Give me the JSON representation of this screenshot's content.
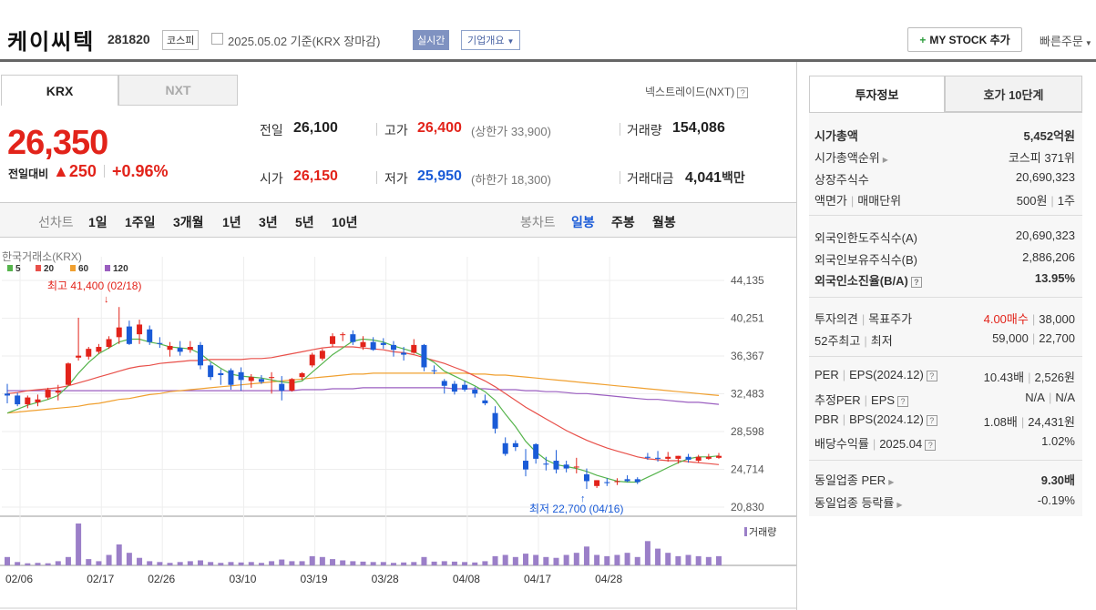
{
  "header": {
    "title": "케이씨텍",
    "code": "281820",
    "market": "코스피",
    "date_text": "2025.05.02  기준(KRX 장마감)",
    "realtime": "실시간",
    "company": "기업개요",
    "my_stock": "MY STOCK 추가",
    "quick_order": "빠른주문"
  },
  "tabs": {
    "krx": "KRX",
    "nxt": "NXT"
  },
  "nxt_link": "넥스트레이드(NXT)",
  "quote": {
    "price": "26,350",
    "change_label": "전일대비",
    "change": "▲250",
    "change_pct": "+0.96%",
    "prev_label": "전일",
    "prev": "26,100",
    "open_label": "시가",
    "open": "26,150",
    "high_label": "고가",
    "high": "26,400",
    "upper_limit": "(상한가 33,900)",
    "low_label": "저가",
    "low": "25,950",
    "lower_limit": "(하한가 18,300)",
    "volume_label": "거래량",
    "volume": "154,086",
    "amount_label": "거래대금",
    "amount": "4,041",
    "amount_unit": "백만"
  },
  "chart_controls": {
    "line_label": "선차트",
    "line_periods": [
      "1일",
      "1주일",
      "3개월",
      "1년",
      "3년",
      "5년",
      "10년"
    ],
    "candle_label": "봉차트",
    "candle_periods": [
      "일봉",
      "주봉",
      "월봉"
    ],
    "active": "일봉"
  },
  "chart_data": {
    "type": "candlestick",
    "source": "한국거래소(KRX)",
    "legend": [
      {
        "name": "5",
        "color": "#56b44c"
      },
      {
        "name": "20",
        "color": "#e8504a"
      },
      {
        "name": "60",
        "color": "#f0a030"
      },
      {
        "name": "120",
        "color": "#9b5fc0"
      }
    ],
    "y_ticks": [
      "44,135",
      "40,251",
      "36,367",
      "32,483",
      "28,598",
      "24,714",
      "20,830"
    ],
    "ylim": [
      20830,
      44135
    ],
    "x_ticks": [
      "02/06",
      "02/17",
      "02/26",
      "03/10",
      "03/19",
      "03/28",
      "04/08",
      "04/17",
      "04/28"
    ],
    "max_label": "최고 41,400 (02/18)",
    "min_label": "최저 22,700 (04/16)",
    "volume_label": "거래량",
    "candles": [
      [
        32500,
        33500,
        31500,
        32300
      ],
      [
        32300,
        32600,
        31200,
        31400
      ],
      [
        31400,
        32300,
        31000,
        32100
      ],
      [
        31600,
        32400,
        31200,
        31900
      ],
      [
        32100,
        33100,
        31900,
        32900
      ],
      [
        32600,
        33400,
        31800,
        32800
      ],
      [
        33400,
        35700,
        33300,
        35600
      ],
      [
        36200,
        40300,
        35900,
        36400
      ],
      [
        36300,
        37300,
        36000,
        37100
      ],
      [
        36800,
        37600,
        36600,
        37300
      ],
      [
        37300,
        38400,
        37100,
        38100
      ],
      [
        38300,
        41400,
        37600,
        39300
      ],
      [
        39400,
        40000,
        37500,
        37600
      ],
      [
        38600,
        40100,
        37600,
        39600
      ],
      [
        39100,
        39500,
        37500,
        37800
      ],
      [
        37700,
        38300,
        37200,
        37600
      ],
      [
        37000,
        37800,
        36300,
        37400
      ],
      [
        37200,
        37900,
        36400,
        36800
      ],
      [
        37000,
        37900,
        36700,
        37300
      ],
      [
        37500,
        37800,
        35000,
        35400
      ],
      [
        35400,
        35700,
        33900,
        34200
      ],
      [
        34600,
        35000,
        33400,
        34400
      ],
      [
        34900,
        35100,
        32900,
        33400
      ],
      [
        34700,
        35200,
        32800,
        33900
      ],
      [
        33800,
        34500,
        33100,
        34200
      ],
      [
        34000,
        34400,
        33500,
        33700
      ],
      [
        34100,
        34700,
        32500,
        34200
      ],
      [
        33500,
        34300,
        31800,
        32800
      ],
      [
        32800,
        34100,
        32700,
        34000
      ],
      [
        34200,
        34700,
        33900,
        34600
      ],
      [
        35400,
        36700,
        35200,
        36500
      ],
      [
        36100,
        37100,
        35900,
        36900
      ],
      [
        37600,
        38700,
        37300,
        38400
      ],
      [
        38600,
        38800,
        37900,
        38600
      ],
      [
        38600,
        39000,
        37500,
        37800
      ],
      [
        37300,
        38400,
        37000,
        37800
      ],
      [
        37800,
        38300,
        36900,
        37000
      ],
      [
        37700,
        38200,
        37100,
        37500
      ],
      [
        37500,
        37900,
        36300,
        37000
      ],
      [
        36700,
        37300,
        35900,
        36500
      ],
      [
        36700,
        38100,
        36600,
        37500
      ],
      [
        37500,
        37600,
        34800,
        35200
      ],
      [
        34900,
        35400,
        34500,
        34800
      ],
      [
        33800,
        34000,
        32500,
        33300
      ],
      [
        33500,
        33800,
        32400,
        32700
      ],
      [
        33400,
        33800,
        32700,
        32900
      ],
      [
        32900,
        33200,
        32100,
        32500
      ],
      [
        31800,
        32400,
        31300,
        31500
      ],
      [
        30500,
        31200,
        28400,
        28900
      ],
      [
        27400,
        28000,
        26100,
        26300
      ],
      [
        27400,
        27700,
        26600,
        27000
      ],
      [
        25600,
        26800,
        24000,
        24700
      ],
      [
        27300,
        27400,
        25300,
        25800
      ],
      [
        25300,
        26000,
        24600,
        25200
      ],
      [
        25600,
        26700,
        24300,
        24700
      ],
      [
        25200,
        25600,
        24400,
        24800
      ],
      [
        25000,
        25900,
        24300,
        25000
      ],
      [
        24200,
        24800,
        22700,
        23500
      ],
      [
        23000,
        23600,
        22800,
        23600
      ],
      [
        23400,
        23800,
        23000,
        23300
      ],
      [
        23400,
        23800,
        23100,
        23500
      ],
      [
        23700,
        24100,
        23400,
        23500
      ],
      [
        23700,
        23900,
        23200,
        23400
      ],
      [
        26000,
        26400,
        25700,
        25900
      ],
      [
        25900,
        26600,
        25500,
        25800
      ],
      [
        25800,
        26500,
        25500,
        26000
      ],
      [
        25800,
        26100,
        25300,
        26100
      ],
      [
        26000,
        26300,
        25400,
        25700
      ],
      [
        25600,
        26200,
        25400,
        26000
      ],
      [
        25800,
        26300,
        25700,
        26000
      ],
      [
        25900,
        26400,
        25800,
        26100
      ]
    ],
    "volumes": [
      0.2,
      0.08,
      0.05,
      0.06,
      0.05,
      0.1,
      0.2,
      1.0,
      0.15,
      0.1,
      0.25,
      0.5,
      0.3,
      0.18,
      0.1,
      0.08,
      0.06,
      0.08,
      0.1,
      0.12,
      0.08,
      0.06,
      0.08,
      0.07,
      0.08,
      0.06,
      0.1,
      0.14,
      0.1,
      0.1,
      0.22,
      0.2,
      0.15,
      0.12,
      0.1,
      0.09,
      0.08,
      0.08,
      0.06,
      0.07,
      0.08,
      0.2,
      0.09,
      0.1,
      0.09,
      0.08,
      0.07,
      0.1,
      0.22,
      0.25,
      0.2,
      0.28,
      0.25,
      0.2,
      0.18,
      0.25,
      0.3,
      0.45,
      0.25,
      0.22,
      0.25,
      0.3,
      0.2,
      0.58,
      0.4,
      0.3,
      0.22,
      0.25,
      0.22,
      0.2,
      0.22
    ],
    "ma5": [
      30500,
      30900,
      31300,
      31600,
      31900,
      32300,
      33300,
      34600,
      35700,
      36600,
      37200,
      37800,
      38100,
      38100,
      37800,
      37600,
      37300,
      37200,
      37100,
      36600,
      35800,
      35100,
      34500,
      34300,
      34200,
      34100,
      33900,
      33700,
      33600,
      33800,
      34700,
      35600,
      36500,
      37200,
      37900,
      38100,
      38000,
      37800,
      37400,
      37100,
      36800,
      36300,
      35700,
      34800,
      34300,
      33800,
      33300,
      32700,
      31800,
      30400,
      29100,
      27600,
      26500,
      25700,
      25200,
      25000,
      24800,
      24500,
      24100,
      23800,
      23500,
      23400,
      23400,
      23900,
      24400,
      24900,
      25400,
      25800,
      26000,
      26000,
      26100
    ],
    "ma20": [
      32500,
      32600,
      32800,
      32900,
      33000,
      33100,
      33300,
      33600,
      33900,
      34200,
      34500,
      34800,
      35100,
      35300,
      35400,
      35600,
      35700,
      35800,
      35900,
      35900,
      36000,
      36000,
      36000,
      36000,
      36100,
      36100,
      36200,
      36400,
      36600,
      36800,
      37000,
      37200,
      37300,
      37300,
      37300,
      37200,
      37100,
      37000,
      36800,
      36700,
      36500,
      36200,
      35900,
      35600,
      35200,
      34800,
      34300,
      33800,
      33200,
      32500,
      31800,
      31100,
      30500,
      29900,
      29300,
      28700,
      28200,
      27700,
      27300,
      26900,
      26600,
      26300,
      26000,
      25800,
      25700,
      25600,
      25600,
      25500,
      25400,
      25300,
      25200
    ],
    "ma60": [
      30500,
      30600,
      30700,
      30800,
      30900,
      31000,
      31100,
      31200,
      31400,
      31500,
      31700,
      31900,
      32000,
      32200,
      32400,
      32500,
      32700,
      32800,
      32900,
      33000,
      33100,
      33200,
      33300,
      33400,
      33500,
      33600,
      33700,
      33800,
      33900,
      34000,
      34100,
      34200,
      34300,
      34400,
      34500,
      34500,
      34600,
      34600,
      34600,
      34600,
      34600,
      34600,
      34600,
      34600,
      34600,
      34600,
      34500,
      34500,
      34400,
      34400,
      34300,
      34200,
      34100,
      34000,
      33900,
      33800,
      33700,
      33600,
      33500,
      33400,
      33300,
      33200,
      33100,
      33000,
      32900,
      32800,
      32700,
      32600,
      32500,
      32400,
      32300
    ],
    "ma120": [
      32800,
      32800,
      32800,
      32800,
      32800,
      32800,
      32800,
      32800,
      32800,
      32800,
      32800,
      32800,
      32800,
      32800,
      32800,
      32800,
      32800,
      32800,
      32800,
      32800,
      32800,
      32800,
      32800,
      32800,
      32800,
      32800,
      32800,
      32800,
      32800,
      32900,
      32900,
      32900,
      33000,
      33000,
      33000,
      33100,
      33100,
      33100,
      33100,
      33100,
      33100,
      33100,
      33100,
      33100,
      33000,
      33000,
      33000,
      33000,
      32900,
      32900,
      32900,
      32800,
      32800,
      32700,
      32700,
      32600,
      32500,
      32500,
      32400,
      32300,
      32200,
      32100,
      32000,
      31900,
      31900,
      31800,
      31700,
      31600,
      31600,
      31500,
      31400
    ]
  },
  "invest": {
    "tab_invest": "투자정보",
    "tab_hoga": "호가 10단계",
    "rows": [
      {
        "k": "시가총액",
        "v": "5,452억원"
      },
      {
        "k": "시가총액순위",
        "v": "코스피 371위"
      },
      {
        "k": "상장주식수",
        "v": "20,690,323"
      },
      {
        "k": "액면가",
        "k2": "매매단위",
        "v": "500원",
        "v2": "1주"
      },
      {
        "k": "외국인한도주식수(A)",
        "v": "20,690,323"
      },
      {
        "k": "외국인보유주식수(B)",
        "v": "2,886,206"
      },
      {
        "k": "외국인소진율(B/A)",
        "v": "13.95%"
      },
      {
        "k": "투자의견",
        "k2": "목표주가",
        "v": "4.00매수",
        "v2": "38,000"
      },
      {
        "k": "52주최고",
        "k2": "최저",
        "v": "59,000",
        "v2": "22,700"
      },
      {
        "k": "PER",
        "k2": "EPS(2024.12)",
        "v": "10.43배",
        "v2": "2,526원"
      },
      {
        "k": "추정PER",
        "k2": "EPS",
        "v": "N/A",
        "v2": "N/A"
      },
      {
        "k": "PBR",
        "k2": "BPS(2024.12)",
        "v": "1.08배",
        "v2": "24,431원"
      },
      {
        "k": "배당수익률",
        "k2": "2025.04",
        "v": "1.02%"
      },
      {
        "k": "동일업종 PER",
        "v": "9.30배"
      },
      {
        "k": "동일업종 등락률",
        "v": "-0.19%"
      }
    ]
  }
}
